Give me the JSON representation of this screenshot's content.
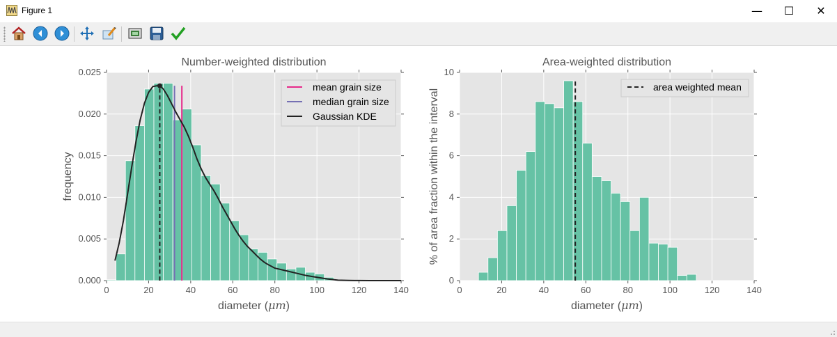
{
  "window": {
    "title": "Figure 1",
    "minimize_glyph": "—",
    "maximize_glyph": "☐",
    "close_glyph": "✕"
  },
  "toolbar": {
    "buttons": [
      {
        "name": "home-icon",
        "label": "Home"
      },
      {
        "name": "back-icon",
        "label": "Back"
      },
      {
        "name": "forward-icon",
        "label": "Forward"
      },
      {
        "name": "pan-icon",
        "label": "Pan"
      },
      {
        "name": "zoom-icon",
        "label": "Zoom"
      },
      {
        "name": "subplots-icon",
        "label": "Subplots"
      },
      {
        "name": "save-icon",
        "label": "Save"
      },
      {
        "name": "edit-check-icon",
        "label": "Customize"
      }
    ]
  },
  "colors": {
    "bar": "#66c2a5",
    "axes_bg": "#e5e5e5",
    "mean": "#e7298a",
    "median": "#7570b3",
    "kde": "#222222",
    "grid": "#ffffff"
  },
  "chart_data": [
    {
      "type": "bar",
      "title": "Number-weighted distribution",
      "xlabel": "diameter (μm)",
      "xlabel_prefix": "diameter (",
      "xlabel_unit": "μm",
      "xlabel_suffix": ")",
      "ylabel": "frequency",
      "xlim": [
        0,
        140
      ],
      "ylim": [
        0,
        0.025
      ],
      "xticks": [
        0,
        20,
        40,
        60,
        80,
        100,
        120,
        140
      ],
      "yticks": [
        0,
        0.005,
        0.01,
        0.015,
        0.02,
        0.025
      ],
      "ytick_labels": [
        "0.000",
        "0.005",
        "0.010",
        "0.015",
        "0.020",
        "0.025"
      ],
      "bin_edges": [
        0,
        4.5,
        9,
        13.5,
        18,
        22.5,
        27,
        31.5,
        36,
        40.5,
        45,
        49.5,
        54,
        58.5,
        63,
        67.5,
        72,
        76.5,
        81,
        85.5,
        90,
        94.5,
        99,
        103.5,
        108
      ],
      "values": [
        0.0001,
        0.0032,
        0.0144,
        0.0186,
        0.023,
        0.0237,
        0.0237,
        0.0193,
        0.0206,
        0.0163,
        0.0126,
        0.0116,
        0.0093,
        0.0072,
        0.0055,
        0.0038,
        0.0034,
        0.0026,
        0.0021,
        0.0014,
        0.0016,
        0.001,
        0.0008,
        0.0004
      ],
      "mean_grain_size": 35.8,
      "median_grain_size": 32.3,
      "kde_peak_x": 25.3,
      "kde": {
        "x": [
          4,
          6,
          8,
          10,
          12,
          14,
          16,
          18,
          20,
          22,
          24,
          25.3,
          27,
          29,
          31,
          33,
          35,
          37,
          39,
          41,
          43,
          45,
          47,
          49,
          51,
          53,
          55,
          57,
          59,
          61,
          63,
          65,
          67,
          69,
          71,
          73,
          75,
          77,
          80,
          85,
          90,
          95,
          100,
          105,
          110,
          115,
          120,
          125,
          130,
          135,
          140
        ],
        "y": [
          0.0024,
          0.0045,
          0.0072,
          0.0104,
          0.0137,
          0.0167,
          0.0193,
          0.0213,
          0.0226,
          0.0233,
          0.0234,
          0.0234,
          0.023,
          0.0222,
          0.0212,
          0.0202,
          0.0193,
          0.0184,
          0.0173,
          0.016,
          0.0146,
          0.0134,
          0.0124,
          0.0116,
          0.0108,
          0.0099,
          0.0089,
          0.008,
          0.0071,
          0.0062,
          0.0054,
          0.0047,
          0.0041,
          0.0036,
          0.0031,
          0.0026,
          0.0022,
          0.0019,
          0.0015,
          0.0012,
          0.0009,
          0.0006,
          0.0004,
          0.0002,
          5e-05,
          2e-05,
          1e-05,
          0,
          0,
          0,
          0
        ]
      },
      "legend": {
        "placement": "top-right",
        "entries": [
          "mean grain size",
          "median grain size",
          "Gaussian KDE"
        ]
      },
      "kde_label": "Gaussian KDE",
      "grid": true
    },
    {
      "type": "bar",
      "title": "Area-weighted distribution",
      "xlabel": "diameter (μm)",
      "xlabel_prefix": "diameter (",
      "xlabel_unit": "μm",
      "xlabel_suffix": ")",
      "ylabel": "% of area fraction within the interval",
      "xlim": [
        0,
        140
      ],
      "ylim": [
        0,
        10
      ],
      "xticks": [
        0,
        20,
        40,
        60,
        80,
        100,
        120,
        140
      ],
      "yticks": [
        0,
        2,
        4,
        6,
        8,
        10
      ],
      "ytick_labels": [
        "0",
        "2",
        "4",
        "6",
        "8",
        "10"
      ],
      "bin_edges": [
        9,
        13.5,
        18,
        22.5,
        27,
        31.5,
        36,
        40.5,
        45,
        49.5,
        54,
        58.5,
        63,
        67.5,
        72,
        76.5,
        81,
        85.5,
        90,
        94.5,
        99,
        103.5,
        108,
        112.5,
        117
      ],
      "values": [
        0.4,
        1.1,
        2.4,
        3.6,
        5.3,
        6.2,
        8.6,
        8.5,
        8.3,
        9.6,
        8.6,
        6.6,
        5.0,
        4.8,
        4.2,
        3.8,
        2.4,
        4.0,
        1.8,
        1.75,
        1.6,
        0.25,
        0.3,
        0
      ],
      "area_weighted_mean": 55.0,
      "legend": {
        "placement": "top-right",
        "entries": [
          "area weighted mean"
        ]
      },
      "grid": true
    }
  ]
}
